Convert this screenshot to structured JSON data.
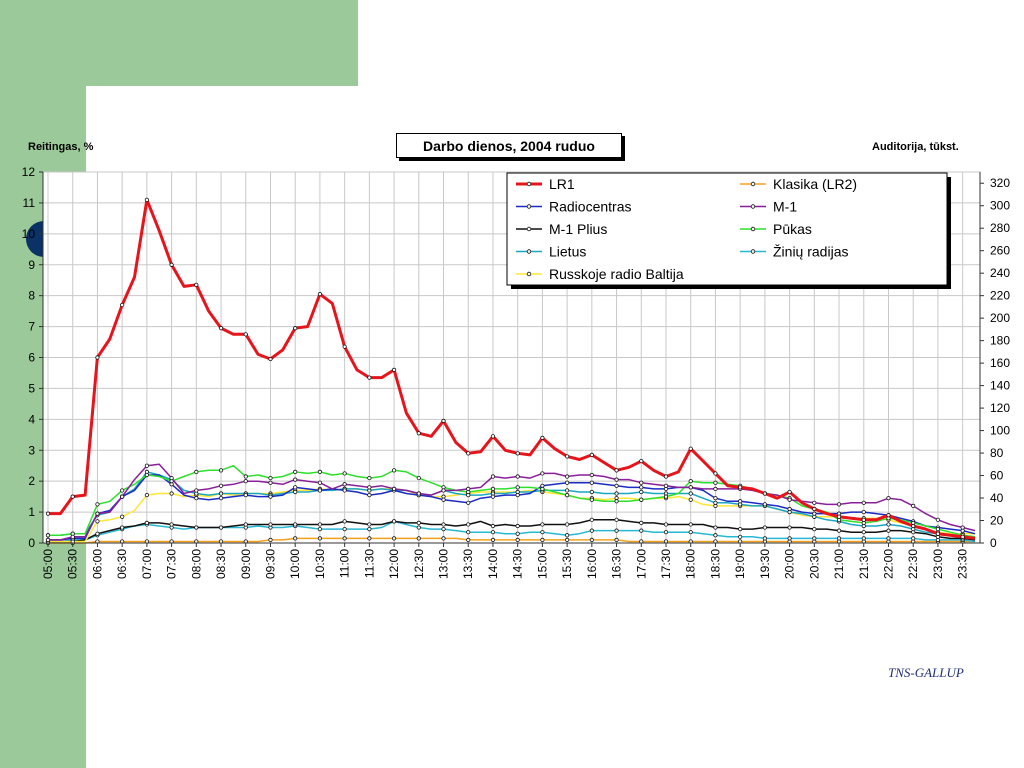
{
  "slide": {
    "colors": {
      "green_band": "#9cc99a",
      "bullet": "#0a3266",
      "footer_text": "#1f2f7a"
    },
    "footer": "TNS-GALLUP"
  },
  "chart_data": {
    "type": "line",
    "title": "Darbo dienos, 2004 ruduo",
    "ylabel": "Reitingas, %",
    "y2label": "Auditorija, tūkst.",
    "ylim": [
      0,
      12
    ],
    "y2lim": [
      0,
      330
    ],
    "yticks": [
      "0",
      "1",
      "2",
      "3",
      "4",
      "5",
      "6",
      "7",
      "8",
      "9",
      "10",
      "11",
      "12"
    ],
    "y2ticks": [
      "0",
      "20",
      "40",
      "60",
      "80",
      "100",
      "120",
      "140",
      "160",
      "180",
      "200",
      "220",
      "240",
      "260",
      "280",
      "300",
      "320"
    ],
    "xticks": [
      "05:00",
      "05:30",
      "06:00",
      "06:30",
      "07:00",
      "07:30",
      "08:00",
      "08:30",
      "09:00",
      "09:30",
      "10:00",
      "10:30",
      "11:00",
      "11:30",
      "12:00",
      "12:30",
      "13:00",
      "13:30",
      "14:00",
      "14:30",
      "15:00",
      "15:30",
      "16:00",
      "16:30",
      "17:00",
      "17:30",
      "18:00",
      "18:30",
      "19:00",
      "19:30",
      "20:00",
      "20:30",
      "21:00",
      "21:30",
      "22:00",
      "22:30",
      "23:00",
      "23:30"
    ],
    "grid": true,
    "legend_position": "top-right",
    "series": [
      {
        "name": "LR1",
        "color": "#e8141b",
        "width": 3,
        "values": [
          0.95,
          0.95,
          1.5,
          1.55,
          6.0,
          6.6,
          7.7,
          8.6,
          11.1,
          10.1,
          9.0,
          8.3,
          8.35,
          7.5,
          6.95,
          6.75,
          6.75,
          6.1,
          5.95,
          6.25,
          6.95,
          7.0,
          8.05,
          7.75,
          6.35,
          5.6,
          5.35,
          5.35,
          5.6,
          4.2,
          3.55,
          3.45,
          3.95,
          3.25,
          2.9,
          2.95,
          3.45,
          3.0,
          2.9,
          2.85,
          3.4,
          3.05,
          2.8,
          2.7,
          2.85,
          2.6,
          2.35,
          2.45,
          2.65,
          2.35,
          2.15,
          2.3,
          3.05,
          2.65,
          2.25,
          1.85,
          1.8,
          1.75,
          1.6,
          1.45,
          1.65,
          1.3,
          1.1,
          0.95,
          0.85,
          0.8,
          0.75,
          0.75,
          0.9,
          0.7,
          0.55,
          0.45,
          0.3,
          0.25,
          0.2,
          0.15
        ]
      },
      {
        "name": "Radiocentras",
        "color": "#1b2bc4",
        "width": 1.5,
        "values": [
          0.1,
          0.1,
          0.15,
          0.15,
          0.95,
          1.05,
          1.5,
          1.7,
          2.2,
          2.2,
          1.9,
          1.55,
          1.45,
          1.4,
          1.45,
          1.5,
          1.55,
          1.5,
          1.5,
          1.55,
          1.8,
          1.75,
          1.7,
          1.75,
          1.7,
          1.65,
          1.55,
          1.6,
          1.7,
          1.6,
          1.55,
          1.5,
          1.4,
          1.35,
          1.3,
          1.45,
          1.5,
          1.55,
          1.55,
          1.6,
          1.85,
          1.9,
          1.95,
          1.95,
          1.95,
          1.9,
          1.85,
          1.8,
          1.8,
          1.75,
          1.75,
          1.8,
          1.8,
          1.7,
          1.45,
          1.35,
          1.35,
          1.3,
          1.25,
          1.2,
          1.1,
          1.0,
          0.95,
          0.95,
          0.95,
          1.0,
          1.0,
          0.95,
          0.9,
          0.8,
          0.7,
          0.55,
          0.5,
          0.45,
          0.4,
          0.3
        ]
      },
      {
        "name": "M-1 Plius",
        "color": "#111111",
        "width": 1.5,
        "values": [
          0.05,
          0.05,
          0.05,
          0.1,
          0.3,
          0.4,
          0.5,
          0.55,
          0.65,
          0.65,
          0.6,
          0.55,
          0.5,
          0.5,
          0.5,
          0.55,
          0.6,
          0.6,
          0.6,
          0.6,
          0.6,
          0.6,
          0.6,
          0.6,
          0.7,
          0.65,
          0.6,
          0.6,
          0.7,
          0.65,
          0.65,
          0.6,
          0.6,
          0.55,
          0.6,
          0.7,
          0.55,
          0.6,
          0.55,
          0.55,
          0.6,
          0.6,
          0.6,
          0.65,
          0.75,
          0.75,
          0.75,
          0.7,
          0.65,
          0.65,
          0.6,
          0.6,
          0.6,
          0.6,
          0.5,
          0.5,
          0.45,
          0.45,
          0.5,
          0.5,
          0.5,
          0.5,
          0.45,
          0.45,
          0.4,
          0.35,
          0.35,
          0.35,
          0.4,
          0.4,
          0.35,
          0.3,
          0.2,
          0.15,
          0.15,
          0.1
        ]
      },
      {
        "name": "Lietus",
        "color": "#1aa7c2",
        "width": 1.5,
        "values": [
          0.25,
          0.25,
          0.3,
          0.3,
          0.9,
          1.0,
          1.5,
          1.75,
          2.3,
          2.2,
          2.05,
          1.7,
          1.6,
          1.55,
          1.6,
          1.6,
          1.6,
          1.6,
          1.55,
          1.6,
          1.65,
          1.65,
          1.7,
          1.7,
          1.75,
          1.75,
          1.7,
          1.75,
          1.7,
          1.7,
          1.6,
          1.55,
          1.7,
          1.6,
          1.55,
          1.55,
          1.6,
          1.6,
          1.65,
          1.65,
          1.7,
          1.7,
          1.7,
          1.65,
          1.65,
          1.6,
          1.6,
          1.6,
          1.65,
          1.6,
          1.6,
          1.6,
          1.6,
          1.45,
          1.3,
          1.3,
          1.25,
          1.2,
          1.2,
          1.1,
          1.0,
          0.95,
          0.85,
          0.75,
          0.7,
          0.6,
          0.55,
          0.55,
          0.6,
          0.55,
          0.45,
          0.35,
          0.3,
          0.25,
          0.2,
          0.2
        ]
      },
      {
        "name": "Russkoje radio Baltija",
        "color": "#ffe635",
        "width": 1.5,
        "values": [
          0.05,
          0.05,
          0.05,
          0.05,
          0.7,
          0.75,
          0.85,
          1.05,
          1.55,
          1.6,
          1.6,
          1.5,
          1.55,
          1.5,
          1.6,
          1.55,
          1.6,
          1.6,
          1.6,
          1.65,
          1.7,
          1.7,
          1.75,
          1.7,
          1.75,
          1.75,
          1.7,
          1.75,
          1.75,
          1.7,
          1.55,
          1.5,
          1.5,
          1.55,
          1.6,
          1.65,
          1.65,
          1.65,
          1.65,
          1.7,
          1.65,
          1.6,
          1.55,
          1.45,
          1.45,
          1.4,
          1.45,
          1.45,
          1.4,
          1.45,
          1.45,
          1.5,
          1.4,
          1.25,
          1.2,
          1.2,
          1.2,
          1.2,
          1.2,
          1.1,
          1.0,
          0.9,
          0.85,
          0.85,
          0.85,
          0.8,
          0.8,
          0.8,
          0.75,
          0.65,
          0.55,
          0.45,
          0.35,
          0.3,
          0.3,
          0.3
        ]
      },
      {
        "name": "Klasika (LR2)",
        "color": "#f5a01a",
        "width": 1.5,
        "values": [
          0.0,
          0.0,
          0.0,
          0.0,
          0.05,
          0.05,
          0.05,
          0.05,
          0.05,
          0.05,
          0.05,
          0.05,
          0.05,
          0.05,
          0.05,
          0.05,
          0.05,
          0.05,
          0.1,
          0.1,
          0.15,
          0.15,
          0.15,
          0.15,
          0.15,
          0.15,
          0.15,
          0.15,
          0.15,
          0.15,
          0.15,
          0.15,
          0.15,
          0.15,
          0.1,
          0.1,
          0.1,
          0.1,
          0.1,
          0.1,
          0.1,
          0.1,
          0.1,
          0.1,
          0.1,
          0.1,
          0.1,
          0.05,
          0.05,
          0.05,
          0.05,
          0.05,
          0.05,
          0.05,
          0.05,
          0.05,
          0.05,
          0.05,
          0.05,
          0.05,
          0.05,
          0.05,
          0.05,
          0.05,
          0.05,
          0.05,
          0.05,
          0.05,
          0.05,
          0.05,
          0.05,
          0.05,
          0.05,
          0.05,
          0.05,
          0.05
        ]
      },
      {
        "name": "M-1",
        "color": "#8a1f9a",
        "width": 1.5,
        "values": [
          0.1,
          0.1,
          0.2,
          0.2,
          0.95,
          1.0,
          1.5,
          2.05,
          2.5,
          2.55,
          2.1,
          1.6,
          1.7,
          1.75,
          1.85,
          1.9,
          2.0,
          2.0,
          1.95,
          1.9,
          2.05,
          2.0,
          1.95,
          1.75,
          1.9,
          1.85,
          1.8,
          1.85,
          1.75,
          1.7,
          1.6,
          1.55,
          1.7,
          1.7,
          1.75,
          1.8,
          2.15,
          2.1,
          2.15,
          2.1,
          2.25,
          2.25,
          2.15,
          2.2,
          2.2,
          2.15,
          2.05,
          2.05,
          1.95,
          1.9,
          1.85,
          1.8,
          1.8,
          1.75,
          1.75,
          1.75,
          1.75,
          1.7,
          1.6,
          1.55,
          1.4,
          1.35,
          1.3,
          1.25,
          1.25,
          1.3,
          1.3,
          1.3,
          1.45,
          1.4,
          1.2,
          0.95,
          0.75,
          0.6,
          0.5,
          0.4
        ]
      },
      {
        "name": "Pūkas",
        "color": "#2ee02c",
        "width": 1.5,
        "values": [
          0.25,
          0.25,
          0.3,
          0.3,
          1.25,
          1.35,
          1.7,
          1.9,
          2.2,
          2.15,
          2.0,
          2.15,
          2.3,
          2.35,
          2.35,
          2.5,
          2.15,
          2.2,
          2.1,
          2.15,
          2.3,
          2.25,
          2.3,
          2.2,
          2.25,
          2.15,
          2.1,
          2.15,
          2.35,
          2.3,
          2.1,
          1.95,
          1.8,
          1.7,
          1.65,
          1.7,
          1.75,
          1.75,
          1.8,
          1.8,
          1.75,
          1.65,
          1.55,
          1.45,
          1.4,
          1.35,
          1.35,
          1.35,
          1.4,
          1.45,
          1.5,
          1.6,
          2.0,
          1.95,
          1.95,
          1.9,
          1.85,
          1.75,
          1.6,
          1.55,
          1.45,
          1.2,
          1.1,
          1.0,
          0.75,
          0.7,
          0.65,
          0.7,
          0.8,
          0.75,
          0.65,
          0.55,
          0.45,
          0.35,
          0.25,
          0.2
        ]
      },
      {
        "name": "Žinių radijas",
        "color": "#27b8d4",
        "width": 1.5,
        "values": [
          0.05,
          0.05,
          0.1,
          0.1,
          0.25,
          0.35,
          0.45,
          0.55,
          0.6,
          0.55,
          0.5,
          0.45,
          0.5,
          0.5,
          0.5,
          0.5,
          0.5,
          0.55,
          0.5,
          0.5,
          0.55,
          0.5,
          0.45,
          0.45,
          0.45,
          0.45,
          0.45,
          0.5,
          0.7,
          0.6,
          0.5,
          0.45,
          0.45,
          0.4,
          0.35,
          0.35,
          0.35,
          0.3,
          0.3,
          0.35,
          0.35,
          0.3,
          0.25,
          0.3,
          0.4,
          0.4,
          0.4,
          0.4,
          0.4,
          0.35,
          0.35,
          0.35,
          0.35,
          0.3,
          0.25,
          0.2,
          0.2,
          0.2,
          0.15,
          0.15,
          0.15,
          0.15,
          0.15,
          0.15,
          0.15,
          0.15,
          0.15,
          0.15,
          0.15,
          0.15,
          0.15,
          0.1,
          0.1,
          0.1,
          0.1,
          0.05
        ]
      }
    ]
  }
}
